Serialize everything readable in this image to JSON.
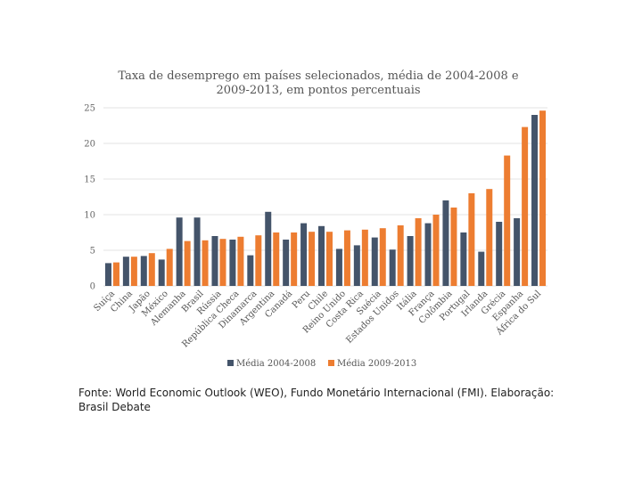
{
  "chart_data": {
    "type": "bar",
    "title_lines": [
      "Taxa de desemprego em países selecionados, média de 2004-2008 e",
      "2009-2013, em pontos percentuais"
    ],
    "categories": [
      "Suíça",
      "China",
      "Japão",
      "México",
      "Alemanha",
      "Brasil",
      "Rússia",
      "República Checa",
      "Dinamarca",
      "Argentina",
      "Canadá",
      "Peru",
      "Chile",
      "Reino Unido",
      "Costa Rica",
      "Suécia",
      "Estados Unidos",
      "Itália",
      "França",
      "Colômbia",
      "Portugal",
      "Irlanda",
      "Grécia",
      "Espanha",
      "África do Sul"
    ],
    "series": [
      {
        "name": "Média 2004-2008",
        "color": "#44546a",
        "values": [
          3.2,
          4.1,
          4.2,
          3.7,
          9.6,
          9.6,
          7.0,
          6.5,
          4.3,
          10.4,
          6.5,
          8.8,
          8.4,
          5.2,
          5.7,
          6.8,
          5.1,
          7.0,
          8.8,
          12.0,
          7.5,
          4.8,
          9.0,
          9.5,
          24.0
        ]
      },
      {
        "name": "Média 2009-2013",
        "color": "#ed7d31",
        "values": [
          3.3,
          4.1,
          4.6,
          5.2,
          6.3,
          6.4,
          6.6,
          6.9,
          7.1,
          7.5,
          7.5,
          7.6,
          7.6,
          7.8,
          7.9,
          8.1,
          8.5,
          9.5,
          10.0,
          11.0,
          13.0,
          13.6,
          18.3,
          22.3,
          24.6
        ]
      }
    ],
    "yticks": [
      0,
      5,
      10,
      15,
      20,
      25
    ],
    "ylim": [
      0,
      25
    ],
    "legend_position": "bottom"
  },
  "caption": "Fonte: World Economic Outlook (WEO), Fundo Monetário Internacional (FMI). Elaboração: Brasil Debate"
}
